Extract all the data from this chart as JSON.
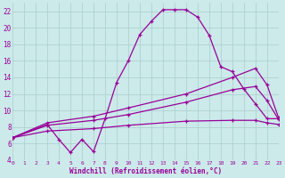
{
  "background_color": "#cceaea",
  "grid_color": "#aacccc",
  "line_color": "#990099",
  "xlabel": "Windchill (Refroidissement éolien,°C)",
  "xlim": [
    0,
    23
  ],
  "ylim": [
    4,
    23
  ],
  "yticks": [
    4,
    6,
    8,
    10,
    12,
    14,
    16,
    18,
    20,
    22
  ],
  "xticks": [
    0,
    1,
    2,
    3,
    4,
    5,
    6,
    7,
    8,
    9,
    10,
    11,
    12,
    13,
    14,
    15,
    16,
    17,
    18,
    19,
    20,
    21,
    22,
    23
  ],
  "series1_x": [
    0,
    3,
    4,
    5,
    6,
    7,
    8,
    9,
    10,
    11,
    12,
    13,
    14,
    15,
    16,
    17,
    18,
    19,
    20,
    21,
    22,
    23
  ],
  "series1_y": [
    6.7,
    8.3,
    6.5,
    4.9,
    6.5,
    5.0,
    9.0,
    13.4,
    16.0,
    19.2,
    20.8,
    22.2,
    22.2,
    22.2,
    21.3,
    19.1,
    15.3,
    14.7,
    12.6,
    10.8,
    9.0,
    9.0
  ],
  "series2_x": [
    0,
    3,
    7,
    10,
    15,
    19,
    21,
    22,
    23
  ],
  "series2_y": [
    6.7,
    8.5,
    9.3,
    10.3,
    12.0,
    14.0,
    15.1,
    13.1,
    9.1
  ],
  "series3_x": [
    0,
    3,
    7,
    10,
    15,
    19,
    21,
    22,
    23
  ],
  "series3_y": [
    6.7,
    8.2,
    8.8,
    9.5,
    11.0,
    12.5,
    12.9,
    11.2,
    8.9
  ],
  "series4_x": [
    0,
    3,
    7,
    10,
    15,
    19,
    21,
    22,
    23
  ],
  "series4_y": [
    6.7,
    7.5,
    7.8,
    8.2,
    8.7,
    8.8,
    8.8,
    8.5,
    8.3
  ]
}
